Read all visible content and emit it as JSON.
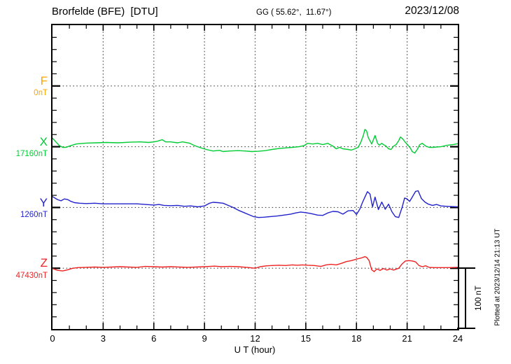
{
  "header": {
    "station": "Brorfelde (BFE)  [DTU]",
    "coords": "GG ( 55.62°,  11.67°)",
    "date": "2023/12/08"
  },
  "scale_bar": {
    "label": "100 nT"
  },
  "footer": {
    "plotted_at": "Plotted at 2023/12/14 21:13 UT"
  },
  "chart_data": {
    "type": "line",
    "title": "Brorfelde (BFE) [DTU] magnetogram",
    "xlabel": "U T (hour)",
    "x_range": [
      0,
      24
    ],
    "x_tick_labels": [
      "0",
      "3",
      "6",
      "9",
      "12",
      "15",
      "18",
      "21",
      "24"
    ],
    "x_minor_tick_step_hours": 1,
    "grid": "dotted vertical lines every 3 hours; dotted horizontal line at each component baseline",
    "y_divisions_nT": 20,
    "scale_bar_nT": 100,
    "values_unit": "nT offset from component baseline",
    "series": [
      {
        "name": "F",
        "baseline_label": "0nT",
        "color": "#FFA500",
        "x": [],
        "values": [],
        "note": "no trace plotted (dotted baseline only)"
      },
      {
        "name": "X",
        "baseline_label": "17160nT",
        "color": "#00CC33",
        "x": [
          0,
          0.2,
          0.4,
          0.6,
          0.8,
          1,
          1.4,
          2,
          2.6,
          3.2,
          3.9,
          4.6,
          5.2,
          5.7,
          6,
          6.2,
          6.5,
          6.7,
          7,
          7.4,
          7.7,
          8.1,
          8.4,
          8.7,
          9.1,
          9.5,
          9.9,
          10.1,
          10.5,
          11,
          11.4,
          11.8,
          12.2,
          12.6,
          13,
          13.4,
          13.8,
          14.2,
          14.6,
          14.9,
          15.1,
          15.4,
          15.7,
          16,
          16.3,
          16.6,
          16.8,
          17,
          17.2,
          17.5,
          17.7,
          17.9,
          18.1,
          18.25,
          18.4,
          18.5,
          18.6,
          18.7,
          18.9,
          19,
          19.1,
          19.25,
          19.35,
          19.5,
          19.6,
          19.75,
          19.9,
          20.05,
          20.2,
          20.35,
          20.5,
          20.6,
          20.75,
          20.9,
          21.05,
          21.2,
          21.3,
          21.45,
          21.6,
          21.75,
          21.9,
          22.1,
          22.3,
          22.5,
          23,
          23.4,
          23.7,
          24
        ],
        "values": [
          14,
          8,
          2,
          -1,
          -1,
          1,
          4.5,
          6,
          6.5,
          7,
          6.5,
          7.5,
          8,
          7,
          8,
          9,
          11.5,
          8,
          8,
          6.5,
          8,
          6,
          2,
          -1,
          -4.5,
          -7,
          -6,
          -8,
          -7,
          -6.5,
          -7,
          -8,
          -7.5,
          -6.5,
          -4.5,
          -3,
          -2,
          -1,
          0,
          2,
          5.5,
          4.5,
          5.5,
          3.5,
          5.5,
          1,
          -3.5,
          -1,
          -3.5,
          -4.5,
          -5.5,
          -3.5,
          -1,
          7,
          18,
          28.5,
          26,
          15,
          4.5,
          11.5,
          18.5,
          5.5,
          2.5,
          5.5,
          3.5,
          1,
          -3.5,
          -4.5,
          1,
          3.5,
          10,
          16,
          12.5,
          7,
          2.5,
          -2.5,
          -8,
          -10.5,
          -4.5,
          3.5,
          5.5,
          1,
          -1,
          -1,
          0,
          2.5,
          3.5,
          5
        ]
      },
      {
        "name": "Y",
        "baseline_label": "1260nT",
        "color": "#2222CC",
        "x": [
          0,
          0.3,
          0.5,
          0.7,
          0.9,
          1.1,
          1.3,
          1.6,
          2,
          2.5,
          3,
          3.5,
          4,
          4.5,
          5,
          5.5,
          6,
          6.3,
          6.6,
          7,
          7.4,
          7.8,
          8.2,
          8.6,
          9,
          9.3,
          9.5,
          9.8,
          10.1,
          10.4,
          10.7,
          11,
          11.3,
          11.6,
          11.9,
          12.2,
          12.5,
          12.9,
          13.3,
          13.7,
          14.1,
          14.4,
          14.7,
          15,
          15.3,
          15.7,
          16,
          16.3,
          16.6,
          16.9,
          17.2,
          17.5,
          17.8,
          18,
          18.2,
          18.35,
          18.5,
          18.65,
          18.8,
          18.95,
          19.1,
          19.3,
          19.5,
          19.7,
          19.9,
          20.1,
          20.3,
          20.5,
          20.7,
          20.85,
          21,
          21.15,
          21.3,
          21.5,
          21.65,
          21.85,
          22.05,
          22.25,
          22.5,
          22.75,
          23,
          23.3,
          23.6,
          24
        ],
        "values": [
          18,
          13,
          11,
          14,
          13,
          10,
          8,
          7,
          6.5,
          7,
          6,
          6,
          6,
          6,
          6,
          5,
          4,
          5,
          3.5,
          3,
          3.5,
          2,
          2.5,
          1,
          2.5,
          7,
          8.5,
          8,
          7,
          3.5,
          0,
          -4.5,
          -8,
          -11.5,
          -15,
          -16.5,
          -16,
          -15,
          -14,
          -12.5,
          -11,
          -9,
          -7.5,
          -8.5,
          -10,
          -12.5,
          -13,
          -9,
          -6.5,
          -7,
          -11,
          -5.5,
          -5,
          -11.5,
          -2.5,
          8,
          17,
          26,
          22,
          1,
          17,
          -3.5,
          9,
          -3,
          5.5,
          -7,
          -15,
          -16.5,
          0,
          15.5,
          14,
          10,
          17,
          26.5,
          27.5,
          14.5,
          9,
          5.5,
          3.5,
          5,
          2.5,
          2,
          1.5,
          1
        ]
      },
      {
        "name": "Z",
        "baseline_label": "47430nT",
        "color": "#EE2222",
        "x": [
          0,
          0.3,
          0.6,
          0.9,
          1.2,
          1.5,
          2,
          2.5,
          3,
          3.5,
          4,
          4.5,
          5,
          5.5,
          6,
          6.5,
          7,
          7.5,
          8,
          8.5,
          9,
          9.6,
          10,
          10.5,
          11,
          11.5,
          12,
          12.3,
          12.7,
          13,
          13.4,
          13.8,
          14.2,
          14.5,
          14.8,
          15.1,
          15.5,
          15.9,
          16.2,
          16.5,
          16.8,
          17.1,
          17.4,
          17.7,
          18,
          18.3,
          18.5,
          18.6,
          18.75,
          18.9,
          19.05,
          19.2,
          19.4,
          19.6,
          19.8,
          20,
          20.2,
          20.5,
          20.7,
          20.9,
          21.1,
          21.3,
          21.5,
          21.7,
          21.9,
          22.1,
          22.3,
          22.6,
          23,
          23.5,
          24
        ],
        "values": [
          -0.5,
          -3.5,
          -4.5,
          -2.5,
          0,
          1,
          1.5,
          2,
          1.5,
          2,
          2.5,
          2,
          1.5,
          3,
          2.5,
          2,
          2.5,
          2,
          1.5,
          2,
          2.5,
          3.5,
          2.5,
          3,
          2.5,
          1.5,
          0,
          2.5,
          4,
          4.5,
          5,
          4.5,
          5.5,
          5,
          5.5,
          5,
          4.5,
          3,
          5.5,
          6.5,
          5.5,
          8,
          11,
          12.5,
          15,
          17,
          19,
          18,
          12.5,
          -2.5,
          -5.5,
          -1,
          -3.5,
          -0.5,
          -3,
          -1,
          -3,
          0,
          7,
          12,
          12.5,
          12,
          10.5,
          4.5,
          2.5,
          4,
          1.5,
          1,
          1,
          1,
          1.5
        ]
      }
    ]
  }
}
